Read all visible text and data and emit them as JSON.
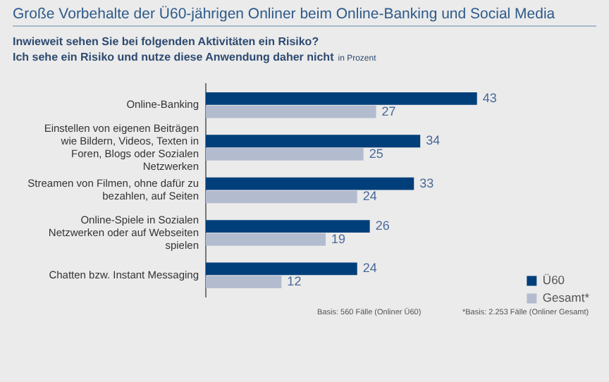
{
  "chart_data": {
    "type": "bar",
    "orientation": "horizontal",
    "title": "Große Vorbehalte der Ü60-jährigen Onliner beim Online-Banking und Social Media",
    "subtitle": "Inwieweit sehen Sie bei folgenden Aktivitäten ein Risiko?\nIch sehe ein Risiko und nutze diese Anwendung daher nicht",
    "categories": [
      "Online-Banking",
      "Einstellen von eigenen Beiträgen wie Bildern, Videos, Texten in Foren, Blogs oder Sozialen Netzwerken",
      "Streamen von Filmen, ohne dafür zu bezahlen, auf Seiten",
      "Online-Spiele in Sozialen Netzwerken oder auf Webseiten spielen",
      "Chatten bzw. Instant Messaging"
    ],
    "series": [
      {
        "name": "Ü60",
        "color": "#003f7a",
        "values": [
          43,
          34,
          33,
          26,
          24
        ]
      },
      {
        "name": "Gesamt*",
        "color": "#b3bccf",
        "values": [
          27,
          25,
          24,
          19,
          12
        ]
      }
    ],
    "data_labels": true,
    "legend": "bottom right",
    "grid": false,
    "annotations": [
      "in Prozent",
      "Basis: 560 Fälle (Onliner Ü60)",
      "*Basis: 2.253 Fälle (Onliner Gesamt)"
    ]
  }
}
